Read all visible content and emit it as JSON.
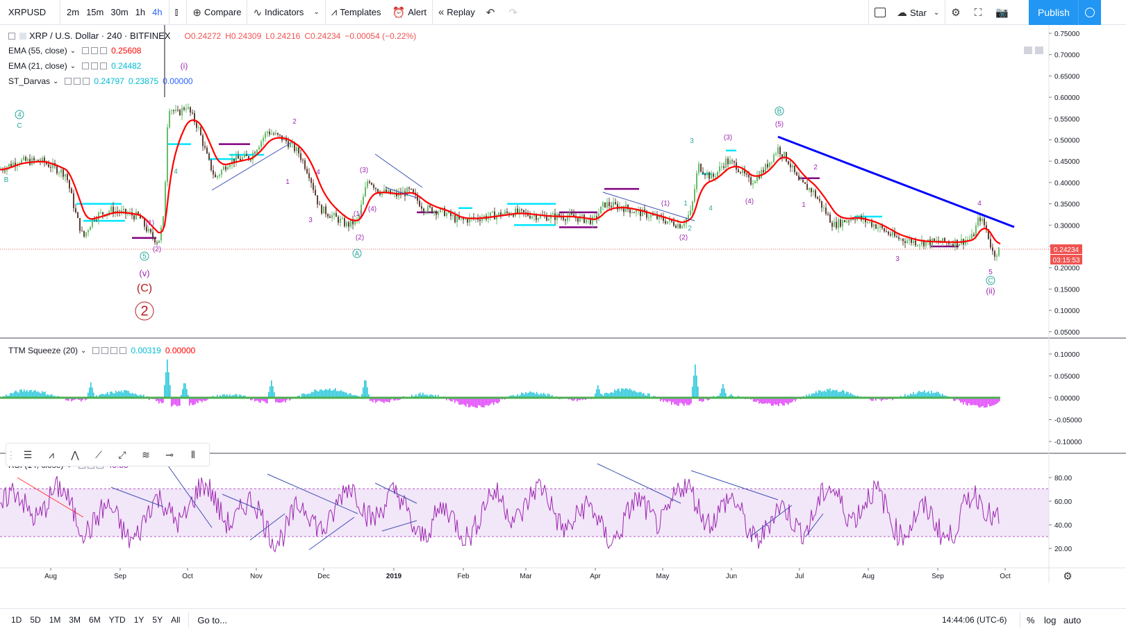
{
  "toolbar": {
    "symbol": "XRPUSD",
    "timeframes": [
      "2m",
      "15m",
      "30m",
      "1h",
      "4h"
    ],
    "active_timeframe": "4h",
    "compare": "Compare",
    "indicators": "Indicators",
    "templates": "Templates",
    "alert": "Alert",
    "replay": "Replay",
    "star": "Star",
    "publish": "Publish"
  },
  "main_legend": {
    "title": "XRP / U.S. Dollar · 240 · BITFINEX",
    "open": "O0.24272",
    "high": "H0.24309",
    "low": "L0.24216",
    "close": "C0.24234",
    "change": "−0.00054 (−0.22%)"
  },
  "indicators": [
    {
      "name": "EMA (55, close)",
      "value": "0.25608",
      "color": "#ff0000"
    },
    {
      "name": "EMA (21, close)",
      "value": "0.24482",
      "color": "#ff0000"
    },
    {
      "name": "ST_Darvas",
      "values": [
        "0.24797",
        "0.23875",
        "0.00000"
      ],
      "color": "#00bcd4"
    }
  ],
  "ttm": {
    "name": "TTM Squeeze (20)",
    "value1": "0.00319",
    "value2": "0.00000"
  },
  "rsi": {
    "name": "RSI (14, close)",
    "value": "43.55"
  },
  "price_axis": {
    "labels": [
      "0.75000",
      "0.70000",
      "0.65000",
      "0.60000",
      "0.55000",
      "0.50000",
      "0.45000",
      "0.40000",
      "0.35000",
      "0.30000",
      "0.25000",
      "0.20000",
      "0.15000",
      "0.10000",
      "0.05000"
    ],
    "current_price": "0.24234",
    "countdown": "03:15:53"
  },
  "ttm_axis": {
    "labels": [
      "0.10000",
      "0.05000",
      "0.00000",
      "-0.05000",
      "-0.10000"
    ]
  },
  "rsi_axis": {
    "labels": [
      "80.00",
      "60.00",
      "40.00",
      "20.00"
    ]
  },
  "time_axis": {
    "labels": [
      "Aug",
      "Sep",
      "Oct",
      "Nov",
      "Dec",
      "2019",
      "Feb",
      "Mar",
      "Apr",
      "May",
      "Jun",
      "Jul",
      "Aug",
      "Sep",
      "Oct"
    ]
  },
  "wave_labels": {
    "i": "(i)",
    "ii": "(ii)",
    "v": "(v)",
    "C": "(C)",
    "two": "2",
    "circ4": "4",
    "circ5": "5",
    "circA": "A",
    "circB": "B",
    "circC": "C",
    "B": "B",
    "Cs": "C",
    "p5": "(5)",
    "p3": "(3)",
    "p1": "(1)",
    "p2": "(2)",
    "p4": "(4)",
    "n1": "1",
    "n2": "2",
    "n3": "3",
    "n4": "4",
    "n5": "5"
  },
  "bottombar": {
    "ranges": [
      "1D",
      "5D",
      "1M",
      "3M",
      "6M",
      "YTD",
      "1Y",
      "5Y",
      "All"
    ],
    "goto": "Go to...",
    "clock": "14:44:06 (UTC-6)",
    "percent": "%",
    "log": "log",
    "auto": "auto"
  },
  "colors": {
    "ema": "#ff0000",
    "darvas": "#00e5ff",
    "darvas_low": "#800080",
    "trendline": "#0000ff",
    "wave_magenta": "#9c27b0",
    "wave_red": "#b71c1c",
    "wave_teal": "#26a69a",
    "rsi_line": "#9c27b0",
    "rsi_band": "#e1bee7",
    "accent": "#2196f3"
  }
}
